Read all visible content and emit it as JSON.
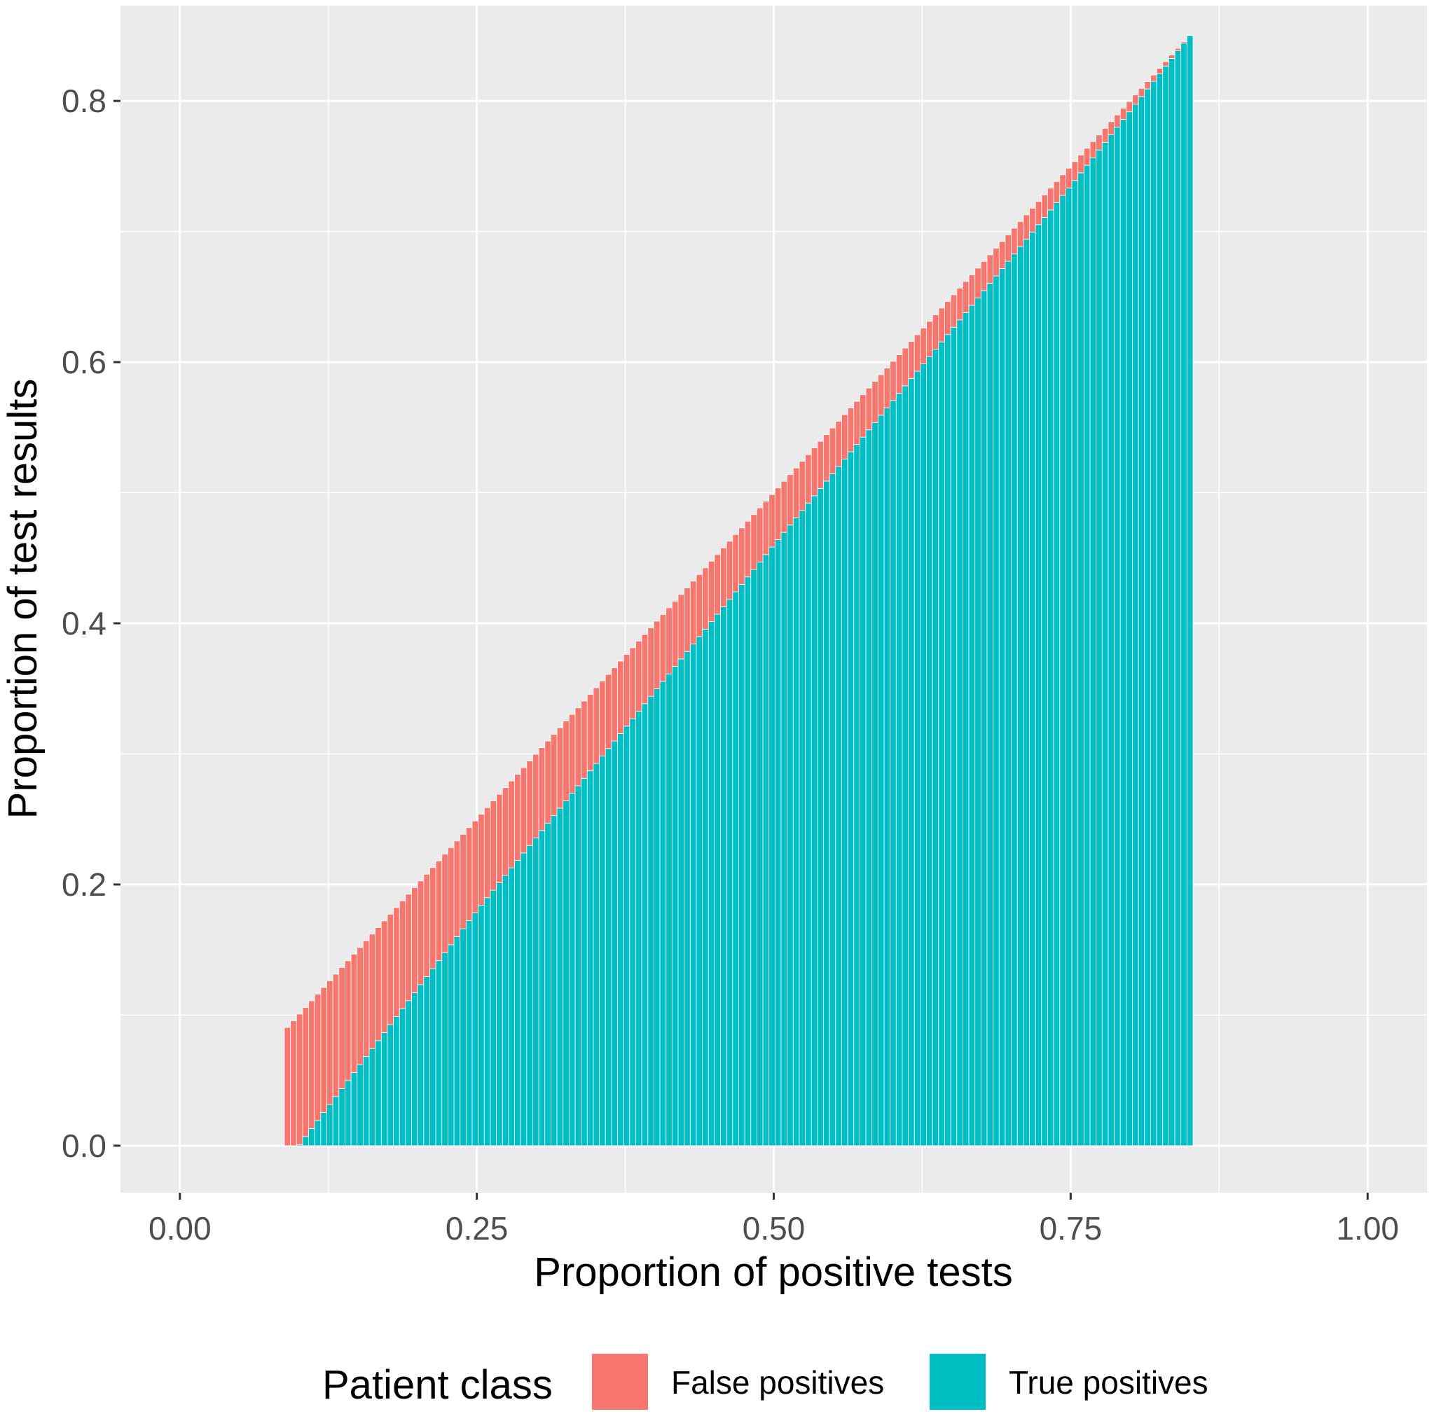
{
  "chart_data": {
    "type": "bar",
    "subtype": "stacked",
    "title": "",
    "xlabel": "Proportion of positive tests",
    "ylabel": "Proportion of test results",
    "xlim": [
      -0.05,
      1.05
    ],
    "ylim": [
      -0.036,
      0.873
    ],
    "x_ticks": [
      {
        "value": 0.0,
        "label": "0.00"
      },
      {
        "value": 0.25,
        "label": "0.25"
      },
      {
        "value": 0.5,
        "label": "0.50"
      },
      {
        "value": 0.75,
        "label": "0.75"
      },
      {
        "value": 1.0,
        "label": "1.00"
      }
    ],
    "y_ticks": [
      {
        "value": 0.0,
        "label": "0.0"
      },
      {
        "value": 0.2,
        "label": "0.2"
      },
      {
        "value": 0.4,
        "label": "0.4"
      },
      {
        "value": 0.6,
        "label": "0.6"
      },
      {
        "value": 0.8,
        "label": "0.8"
      }
    ],
    "x_range": [
      0.088,
      0.853
    ],
    "n_bars": 150,
    "series": [
      {
        "name": "True positives",
        "color": "#00BFC4",
        "description": "rises from 0.0 at x=0.09 to about 0.85 at x=0.853",
        "points": [
          [
            0.088,
            0.0
          ],
          [
            0.1,
            0.0
          ],
          [
            0.25,
            0.18
          ],
          [
            0.5,
            0.46
          ],
          [
            0.75,
            0.735
          ],
          [
            0.853,
            0.853
          ]
        ]
      },
      {
        "name": "False positives",
        "color": "#F8766D",
        "description": "band on top of true positives; top edge follows y = x",
        "points": [
          [
            0.088,
            0.088
          ],
          [
            0.1,
            0.1
          ],
          [
            0.25,
            0.07
          ],
          [
            0.5,
            0.04
          ],
          [
            0.75,
            0.015
          ],
          [
            0.853,
            0.0
          ]
        ]
      }
    ],
    "legend": {
      "title": "Patient class",
      "position": "bottom",
      "entries": [
        {
          "label": "False positives",
          "color": "#F8766D"
        },
        {
          "label": "True positives",
          "color": "#00BFC4"
        }
      ]
    },
    "panel_background": "#EBEBEB",
    "grid": true
  }
}
